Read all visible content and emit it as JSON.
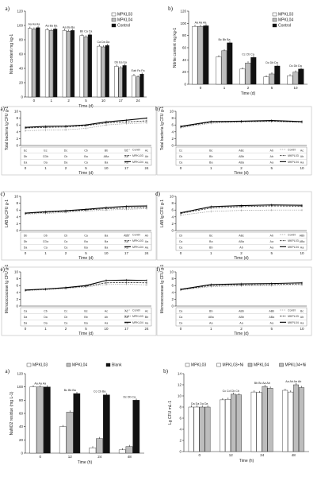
{
  "colors": {
    "MPKL03": "#ffffff",
    "MPKL04": "#bdbdbd",
    "Control": "#111111"
  },
  "chart_data": [
    {
      "id": "a_top",
      "type": "bar",
      "panel_label": "a)",
      "ylabel": "Nitrite content mg kg-1",
      "xlabel": "Time (d)",
      "categories": [
        "0",
        "1",
        "2",
        "5",
        "10",
        "17",
        "24"
      ],
      "ylim": [
        0,
        120
      ],
      "yticks": [
        0,
        20,
        40,
        60,
        80,
        100,
        120
      ],
      "series": [
        {
          "name": "MPKL03",
          "values": [
            96,
            94,
            93,
            86,
            71,
            43,
            30
          ]
        },
        {
          "name": "MPKL04",
          "values": [
            95,
            93,
            92,
            84,
            70,
            41,
            28
          ]
        },
        {
          "name": "Control",
          "values": [
            97,
            95,
            93,
            87,
            72,
            44,
            32
          ]
        }
      ],
      "sig_labels": [
        "Aa Aa Aa",
        "Aa Ba Ba",
        "Aa Ba Ba",
        "Bb Ca Ca",
        "Ca Da Da",
        "Db Ea Ea",
        "Eab Fa Fa"
      ],
      "legend_pos": "top-right"
    },
    {
      "id": "b_top",
      "type": "bar",
      "panel_label": "b)",
      "ylabel": "Nitrite content mg kg-1",
      "xlabel": "Time (d)",
      "categories": [
        "0",
        "1",
        "2",
        "5",
        "10"
      ],
      "ylim": [
        0,
        120
      ],
      "yticks": [
        0,
        20,
        40,
        60,
        80,
        100,
        120
      ],
      "series": [
        {
          "name": "MPKL03",
          "values": [
            95,
            45,
            25,
            12,
            14
          ]
        },
        {
          "name": "MPKL04",
          "values": [
            95,
            55,
            35,
            17,
            20
          ]
        },
        {
          "name": "Control",
          "values": [
            96,
            68,
            44,
            30,
            25
          ]
        }
      ],
      "sig_labels": [
        "Aa Aa Aa",
        "Bc Bb Ba",
        "Cc Cb Ca",
        "Dc Db Da",
        "Dc Db Da"
      ],
      "legend_pos": "top-right"
    },
    {
      "id": "a_mid",
      "type": "line",
      "panel_label": "a)",
      "ylabel": "Total bacteria lg CFU g-1",
      "xlabel": "Time (d)",
      "x": [
        "0",
        "1",
        "2",
        "5",
        "10",
        "17",
        "24"
      ],
      "ylim": [
        0,
        10
      ],
      "yticks": [
        0,
        2,
        4,
        6,
        8,
        10
      ],
      "series": [
        {
          "name": "Contrl",
          "values": [
            4.3,
            4.5,
            4.6,
            5.0,
            6.0,
            6.4,
            6.6
          ]
        },
        {
          "name": "MPKL03",
          "values": [
            5.1,
            5.3,
            5.4,
            5.8,
            6.6,
            6.9,
            7.2
          ]
        },
        {
          "name": "MPKL04",
          "values": [
            5.3,
            5.6,
            5.7,
            6.0,
            6.9,
            7.4,
            8.0
          ]
        }
      ],
      "table_rows": [
        [
          "Ec",
          "Ec",
          "Dc",
          "Cb",
          "Bb",
          "Bc",
          "Ac"
        ],
        [
          "Db",
          "CDb",
          "Cb",
          "Ba",
          "ABa",
          "Ab",
          "Ab"
        ],
        [
          "Ea",
          "Da",
          "Da",
          "Ca",
          "Ba",
          "Aa",
          "Aa"
        ]
      ]
    },
    {
      "id": "b_mid",
      "type": "line",
      "panel_label": "b)",
      "ylabel": "Total bacteria lg CFU g-1",
      "xlabel": "Time (d)",
      "x": [
        "0",
        "1",
        "2",
        "5",
        "10"
      ],
      "ylim": [
        0,
        10
      ],
      "yticks": [
        0,
        2,
        4,
        6,
        8,
        10
      ],
      "series": [
        {
          "name": "Contrl",
          "values": [
            5.2,
            6.5,
            6.8,
            7.0,
            6.7
          ]
        },
        {
          "name": "MKPL03",
          "values": [
            5.4,
            6.8,
            7.0,
            7.1,
            6.9
          ]
        },
        {
          "name": "MKPL04",
          "values": [
            5.6,
            7.0,
            7.1,
            7.3,
            7.0
          ]
        }
      ],
      "table_rows": [
        [
          "Cc",
          "Bc",
          "ABc",
          "Ab",
          "Ac"
        ],
        [
          "Cb",
          "Bb",
          "ABb",
          "Ab",
          "Ab"
        ],
        [
          "Ca",
          "Ba",
          "ABa",
          "Aa",
          "Aa"
        ]
      ]
    },
    {
      "id": "c_mid",
      "type": "line",
      "panel_label": "c)",
      "ylabel": "LAB lg CFU g-1",
      "xlabel": "Time (d)",
      "x": [
        "0",
        "1",
        "2",
        "5",
        "10",
        "17",
        "24"
      ],
      "ylim": [
        0,
        10
      ],
      "yticks": [
        0,
        2,
        4,
        6,
        8,
        10
      ],
      "series": [
        {
          "name": "Contrl",
          "values": [
            4.8,
            5.0,
            5.3,
            5.7,
            6.0,
            6.2,
            6.4
          ]
        },
        {
          "name": "MPKL03",
          "values": [
            5.0,
            5.3,
            5.6,
            6.0,
            6.4,
            6.6,
            6.8
          ]
        },
        {
          "name": "MPKL04",
          "values": [
            5.1,
            5.5,
            5.8,
            6.2,
            6.7,
            7.1,
            7.2
          ]
        }
      ],
      "table_rows": [
        [
          "Db",
          "Db",
          "Cb",
          "Ca",
          "Ba",
          "ABb",
          "Ab"
        ],
        [
          "Db",
          "CDa",
          "Ca",
          "Ba",
          "Ba",
          "Aa",
          "Aa"
        ],
        [
          "Da",
          "Ca",
          "Ca",
          "Ba",
          "Ba",
          "Aa",
          "Aa"
        ]
      ]
    },
    {
      "id": "d_mid",
      "type": "line",
      "panel_label": "d)",
      "ylabel": "LAB lg CFU g-1",
      "xlabel": "Time (d)",
      "x": [
        "0",
        "1",
        "2",
        "5",
        "10"
      ],
      "ylim": [
        0,
        10
      ],
      "yticks": [
        0,
        2,
        4,
        6,
        8,
        10
      ],
      "series": [
        {
          "name": "Contrl",
          "values": [
            4.5,
            5.6,
            5.9,
            6.0,
            6.0
          ]
        },
        {
          "name": "MKPL03",
          "values": [
            5.0,
            6.6,
            7.0,
            7.2,
            7.1
          ]
        },
        {
          "name": "MKPL04",
          "values": [
            5.2,
            7.0,
            7.3,
            7.5,
            7.4
          ]
        }
      ],
      "table_rows": [
        [
          "Cb",
          "Bc",
          "ABc",
          "Ab",
          "ABb"
        ],
        [
          "Ca",
          "Ba",
          "ABa",
          "Aa",
          "ABa"
        ],
        [
          "Ca",
          "Bb",
          "Ab",
          "Aa",
          "Aa"
        ]
      ]
    },
    {
      "id": "e_mid",
      "type": "line",
      "panel_label": "e)",
      "ylabel": "Micrococcaceae lg CFU g-1",
      "xlabel": "Time (d)",
      "x": [
        "0",
        "1",
        "2",
        "5",
        "10",
        "17",
        "24"
      ],
      "ylim": [
        0,
        10
      ],
      "yticks": [
        0,
        2,
        4,
        6,
        8,
        10
      ],
      "series": [
        {
          "name": "Contrl",
          "values": [
            4.5,
            4.8,
            5.1,
            5.6,
            6.3,
            6.4,
            6.2
          ]
        },
        {
          "name": "MPKL03",
          "values": [
            4.6,
            4.9,
            5.3,
            5.8,
            6.8,
            6.9,
            6.8
          ]
        },
        {
          "name": "MPKL04",
          "values": [
            4.7,
            5.0,
            5.4,
            6.0,
            7.5,
            7.6,
            7.5
          ]
        }
      ],
      "table_rows": [
        [
          "Ca",
          "Cb",
          "Cc",
          "Bc",
          "Ac",
          "Ac",
          "Ac"
        ],
        [
          "Da",
          "Da",
          "Cb",
          "Bb",
          "Ab",
          "Ab",
          "Bb"
        ],
        [
          "Da",
          "Da",
          "Ca",
          "Ba",
          "Aa",
          "Aa",
          "Aa"
        ]
      ]
    },
    {
      "id": "f_mid",
      "type": "line",
      "panel_label": "f)",
      "ylabel": "Micrococcaceae lg CFU g-1",
      "xlabel": "Time (d)",
      "x": [
        "0",
        "1",
        "2",
        "5",
        "10"
      ],
      "ylim": [
        0,
        10
      ],
      "yticks": [
        0,
        2,
        4,
        6,
        8,
        10
      ],
      "series": [
        {
          "name": "Contrl",
          "values": [
            4.7,
            5.7,
            5.9,
            6.0,
            6.2
          ]
        },
        {
          "name": "MKPL03",
          "values": [
            4.8,
            6.0,
            6.2,
            6.3,
            6.5
          ]
        },
        {
          "name": "MKPL04",
          "values": [
            4.9,
            6.3,
            6.5,
            6.6,
            6.8
          ]
        }
      ],
      "table_rows": [
        [
          "Ca",
          "Bb",
          "ABb",
          "ABb",
          "Bc"
        ],
        [
          "Ca",
          "ABa",
          "ABb",
          "ABa",
          "Ab"
        ],
        [
          "Ca",
          "Aa",
          "Aa",
          "Aa",
          "Aa"
        ]
      ]
    },
    {
      "id": "a_bot",
      "type": "bar",
      "panel_label": "a)",
      "ylabel": "NaNO2 residue (mg L-1)",
      "xlabel": "Time (h)",
      "categories": [
        "0",
        "12",
        "24",
        "48"
      ],
      "ylim": [
        0,
        120
      ],
      "yticks": [
        0,
        20,
        40,
        60,
        80,
        100,
        120
      ],
      "series": [
        {
          "name": "MPKL03",
          "values": [
            100,
            40,
            8,
            5
          ]
        },
        {
          "name": "MPKL04",
          "values": [
            100,
            62,
            22,
            10
          ]
        },
        {
          "name": "Blank",
          "values": [
            100,
            90,
            88,
            80
          ]
        }
      ],
      "sig_labels": [
        "Aa Aa Aa",
        "Bc Bb Ba",
        "Cc Cb Ba",
        "Dc Db Ca"
      ],
      "legend_pos": "top"
    },
    {
      "id": "b_bot",
      "type": "bar",
      "panel_label": "b)",
      "ylabel": "Lg CFU mL-1",
      "xlabel": "Time (h)",
      "categories": [
        "0",
        "12",
        "24",
        "48"
      ],
      "ylim": [
        0,
        14
      ],
      "yticks": [
        0,
        2,
        4,
        6,
        8,
        10,
        12,
        14
      ],
      "series": [
        {
          "name": "MPKL03",
          "values": [
            8.0,
            9.3,
            10.7,
            11.0
          ]
        },
        {
          "name": "MPKL03+Ni",
          "values": [
            8.0,
            9.4,
            10.6,
            10.7
          ]
        },
        {
          "name": "MPKL04",
          "values": [
            8.0,
            10.3,
            11.7,
            12.0
          ]
        },
        {
          "name": "MPKL04+Ni",
          "values": [
            8.0,
            10.2,
            11.4,
            11.5
          ]
        }
      ],
      "sig_labels": [
        "Da Da Da Da",
        "Cc Cd Cb Cb",
        "Bb Bc Aa Ab",
        "Aa Ab Aa Ab"
      ],
      "legend_pos": "top"
    }
  ]
}
